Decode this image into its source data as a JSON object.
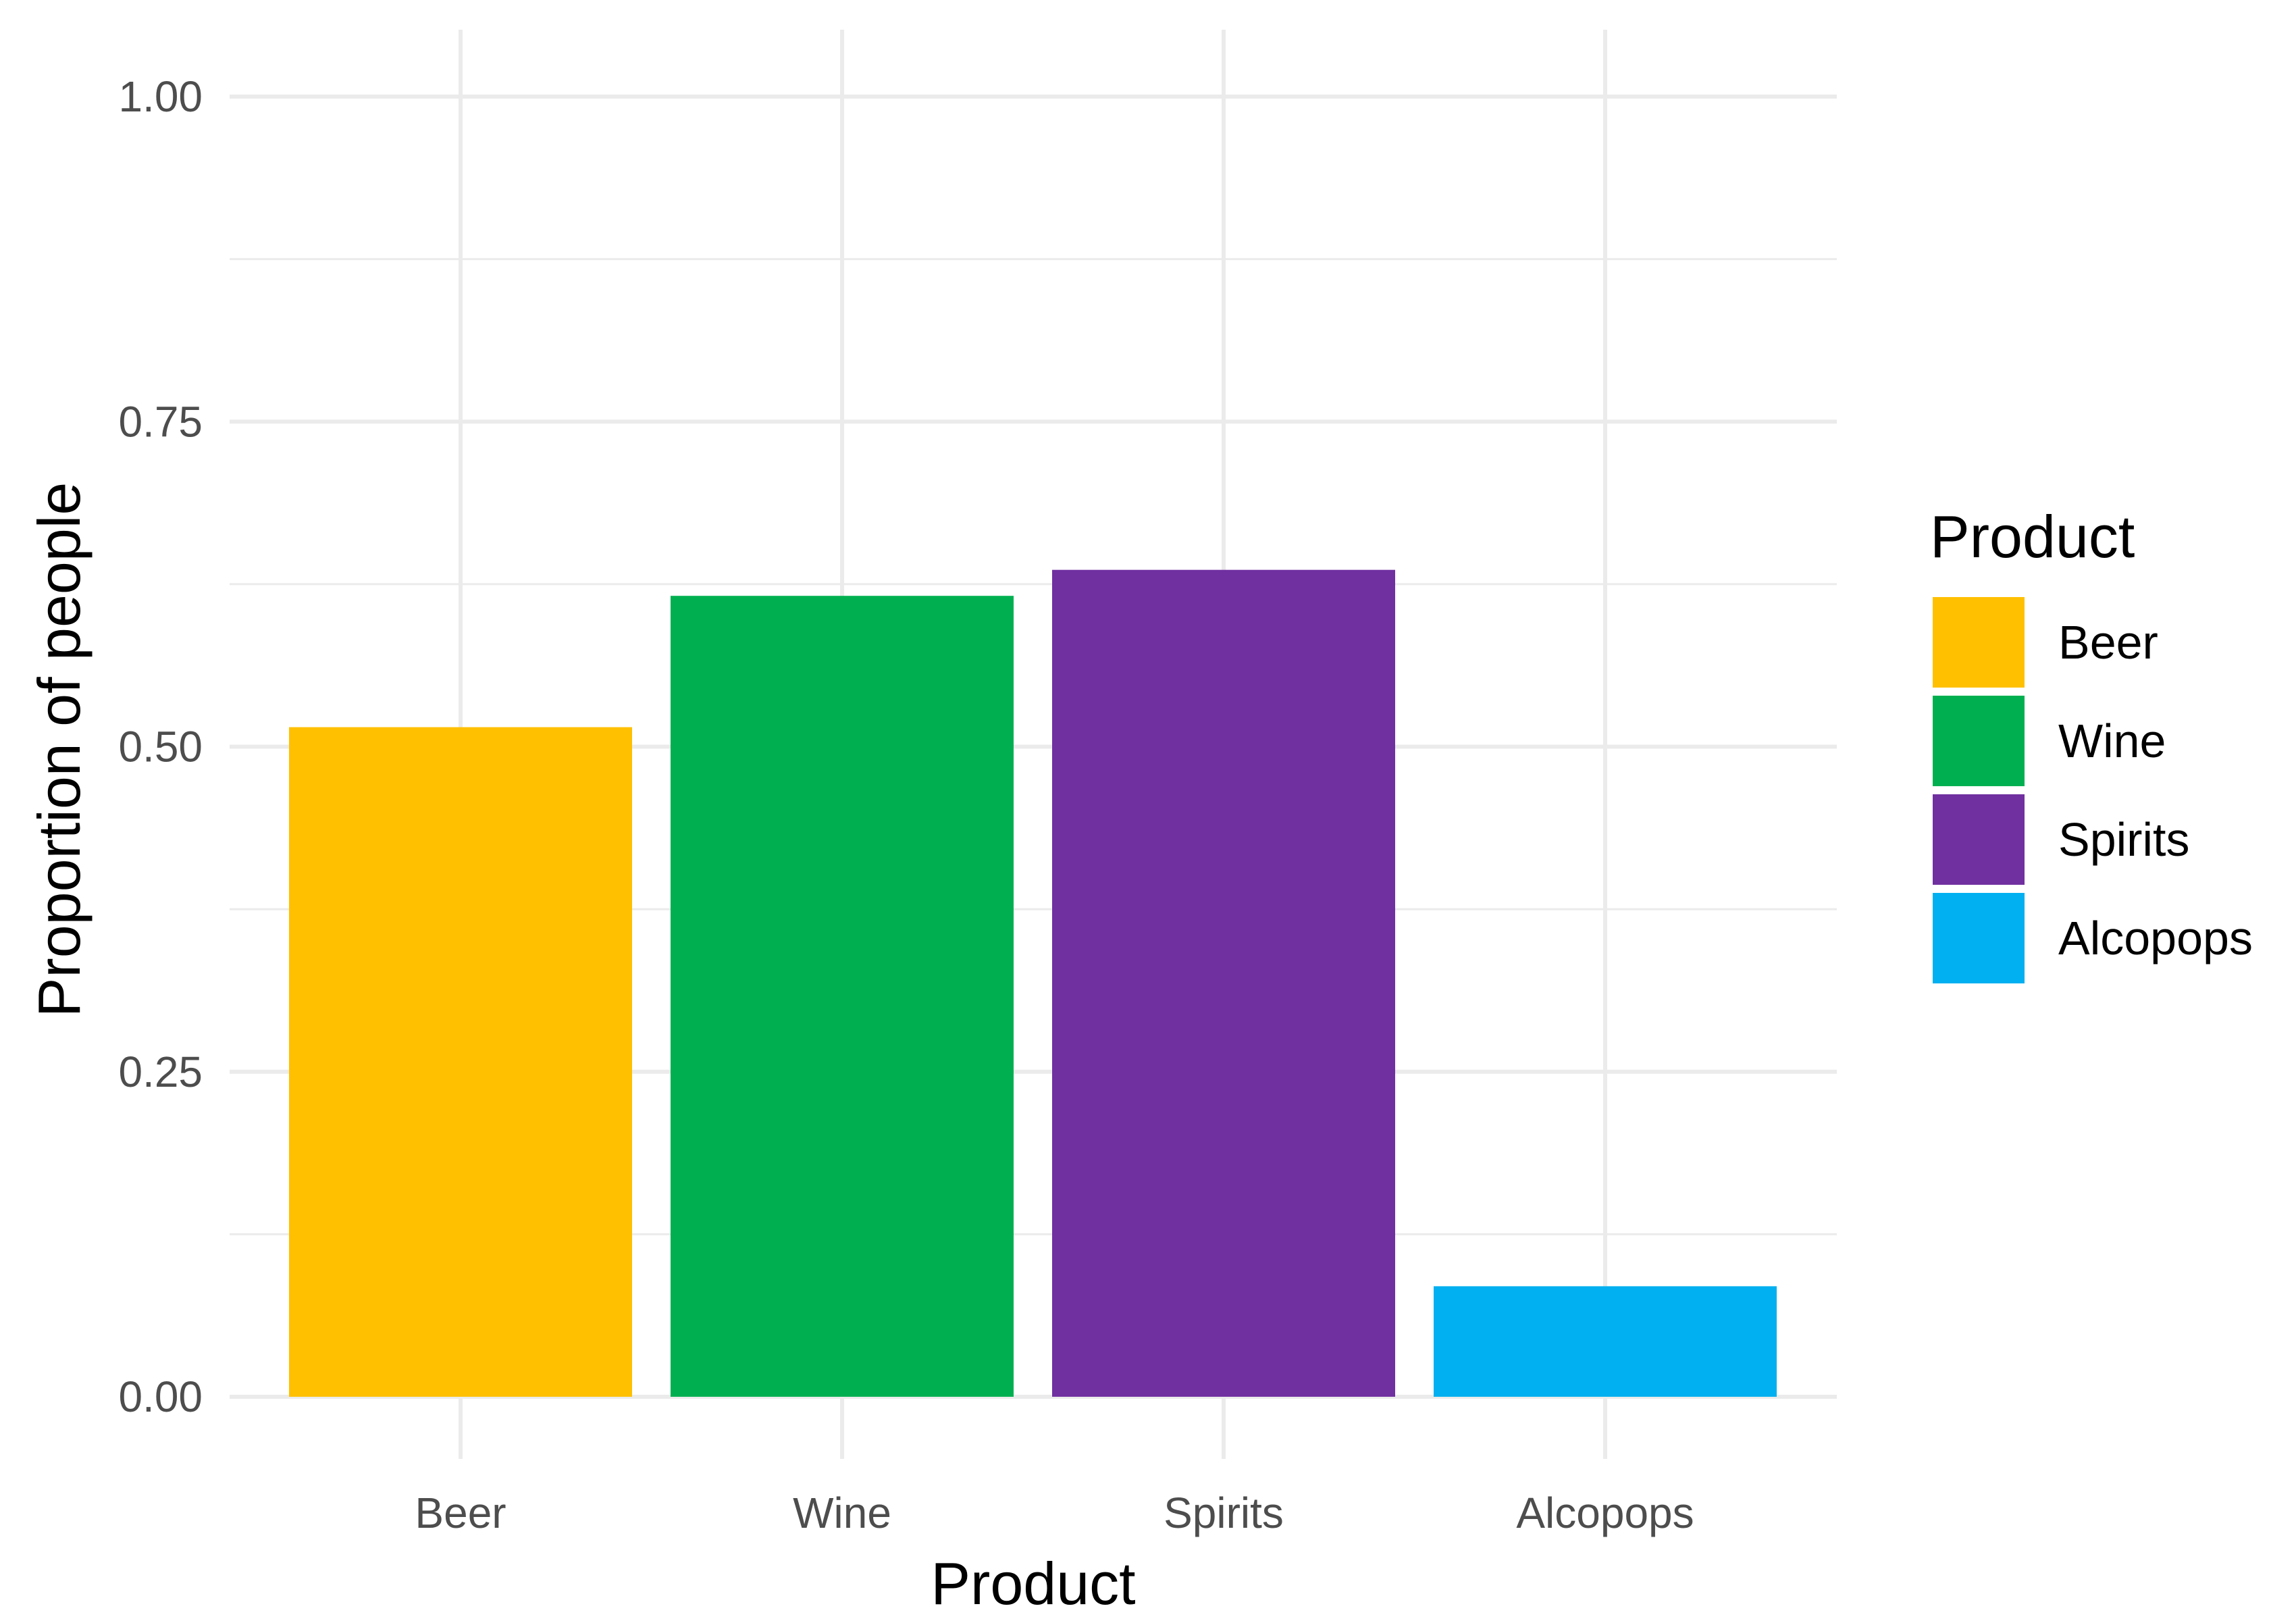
{
  "chart_data": {
    "type": "bar",
    "categories": [
      "Beer",
      "Wine",
      "Spirits",
      "Alcopops"
    ],
    "values": [
      0.515,
      0.616,
      0.636,
      0.085
    ],
    "colors": [
      "#FFC000",
      "#00B050",
      "#7030A0",
      "#00B0F0"
    ],
    "xlabel": "Product",
    "ylabel": "Proportion of people",
    "ylim": [
      0,
      1
    ],
    "yticks": [
      0,
      0.25,
      0.5,
      0.75,
      1
    ],
    "ytick_labels": [
      "0.00",
      "0.25",
      "0.50",
      "0.75",
      "1.00"
    ],
    "grid": true,
    "legend": {
      "title": "Product",
      "position": "right",
      "items": [
        "Beer",
        "Wine",
        "Spirits",
        "Alcopops"
      ]
    }
  }
}
